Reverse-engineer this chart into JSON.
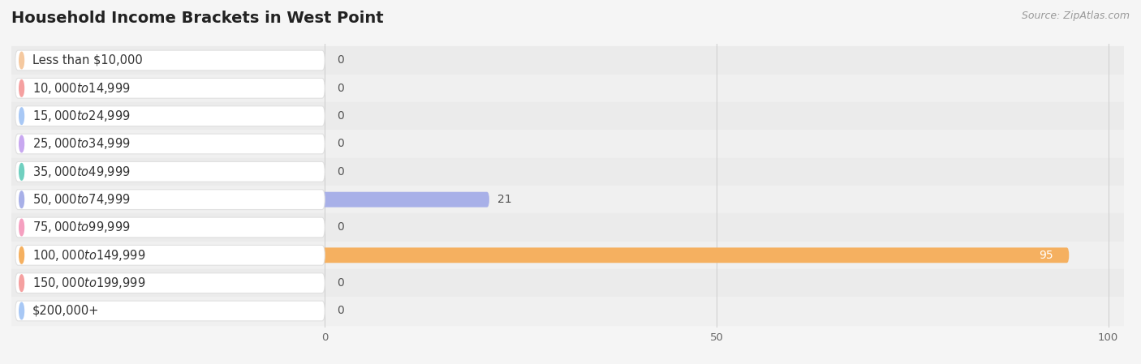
{
  "title": "Household Income Brackets in West Point",
  "source": "Source: ZipAtlas.com",
  "categories": [
    "Less than $10,000",
    "$10,000 to $14,999",
    "$15,000 to $24,999",
    "$25,000 to $34,999",
    "$35,000 to $49,999",
    "$50,000 to $74,999",
    "$75,000 to $99,999",
    "$100,000 to $149,999",
    "$150,000 to $199,999",
    "$200,000+"
  ],
  "values": [
    0,
    0,
    0,
    0,
    0,
    21,
    0,
    95,
    0,
    0
  ],
  "bar_colors": [
    "#f5c9a0",
    "#f5a0a0",
    "#a8c8f5",
    "#c8a8f0",
    "#70d0c0",
    "#a8b0e8",
    "#f5a0c0",
    "#f5b060",
    "#f5a0a0",
    "#a8c8f5"
  ],
  "row_bg_color": "#ebebeb",
  "row_alt_color": "#f5f5f5",
  "pill_color": "#ffffff",
  "pill_outline": "#e0e0e0",
  "value_label_color": "#555555",
  "xlim": [
    0,
    100
  ],
  "xticks": [
    0,
    50,
    100
  ],
  "background_color": "#f5f5f5",
  "title_fontsize": 14,
  "label_fontsize": 10.5,
  "value_fontsize": 10,
  "source_fontsize": 9
}
